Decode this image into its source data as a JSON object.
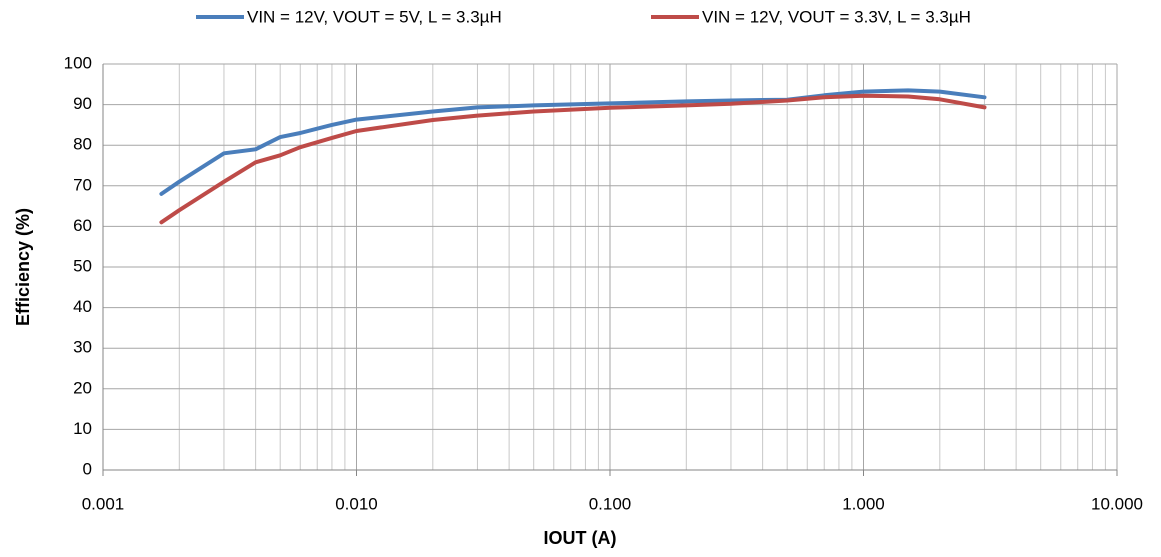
{
  "chart_data": {
    "type": "line",
    "x_label": "IOUT (A)",
    "y_label": "Efficiency (%)",
    "x": [
      0.0017,
      0.002,
      0.003,
      0.004,
      0.005,
      0.006,
      0.008,
      0.01,
      0.02,
      0.03,
      0.05,
      0.1,
      0.2,
      0.3,
      0.5,
      0.7,
      1,
      1.5,
      2,
      3
    ],
    "series": [
      {
        "name": "VIN = 12V, VOUT = 5V, L = 3.3µH",
        "color": "#4a7ebb",
        "values": [
          68,
          71,
          78,
          79,
          82,
          83,
          85,
          86.3,
          88.3,
          89.3,
          89.8,
          90.3,
          90.8,
          91,
          91.2,
          92.3,
          93.2,
          93.5,
          93.2,
          91.8
        ]
      },
      {
        "name": "VIN = 12V, VOUT = 3.3V, L = 3.3µH",
        "color": "#be4b48",
        "values": [
          61,
          64,
          71,
          75.8,
          77.5,
          79.5,
          81.8,
          83.5,
          86.2,
          87.3,
          88.3,
          89.2,
          89.8,
          90.2,
          91,
          91.8,
          92.2,
          92,
          91.3,
          89.3
        ]
      }
    ],
    "xlog": true,
    "xlim": [
      0.001,
      10
    ],
    "xticks": [
      {
        "value": 0.001,
        "label": "0.001"
      },
      {
        "value": 0.01,
        "label": "0.010"
      },
      {
        "value": 0.1,
        "label": "0.100"
      },
      {
        "value": 1,
        "label": "1.000"
      },
      {
        "value": 10,
        "label": "10.000"
      }
    ],
    "ylim": [
      0,
      100
    ],
    "yticks": [
      0,
      10,
      20,
      30,
      40,
      50,
      60,
      70,
      80,
      90,
      100
    ],
    "grid": true,
    "minor_grid": true,
    "legend": "top"
  }
}
